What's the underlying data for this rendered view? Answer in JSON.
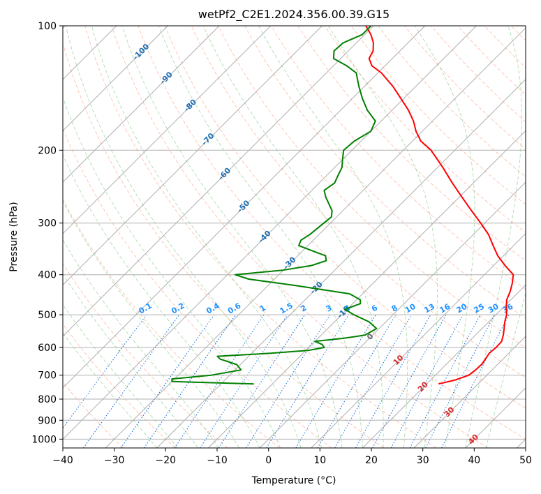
{
  "chart_data": {
    "type": "line",
    "title": "wetPf2_C2E1.2024.356.00.39.G15",
    "xlabel": "Temperature (°C)",
    "ylabel": "Pressure (hPa)",
    "xlim": [
      -40,
      50
    ],
    "ylim": [
      1050,
      100
    ],
    "y_scale": "log",
    "skew": true,
    "x_ticks": [
      "−40",
      "−30",
      "−20",
      "−10",
      "0",
      "10",
      "20",
      "30",
      "40",
      "50"
    ],
    "x_tick_values": [
      -40,
      -30,
      -20,
      -10,
      0,
      10,
      20,
      30,
      40,
      50
    ],
    "y_ticks": [
      "100",
      "200",
      "300",
      "400",
      "500",
      "600",
      "700",
      "800",
      "900",
      "1000"
    ],
    "y_tick_values": [
      100,
      200,
      300,
      400,
      500,
      600,
      700,
      800,
      900,
      1000
    ],
    "grid": true,
    "isotherm_labels": [
      {
        "text": "-100",
        "t": -100,
        "p": 115
      },
      {
        "text": "-90",
        "t": -90,
        "p": 133
      },
      {
        "text": "-80",
        "t": -80,
        "p": 155
      },
      {
        "text": "-70",
        "t": -70,
        "p": 187
      },
      {
        "text": "-60",
        "t": -60,
        "p": 227
      },
      {
        "text": "-50",
        "t": -50,
        "p": 272
      },
      {
        "text": "-40",
        "t": -40,
        "p": 322
      },
      {
        "text": "-30",
        "t": -30,
        "p": 373
      },
      {
        "text": "-20",
        "t": -20,
        "p": 428
      },
      {
        "text": "-10",
        "t": -10,
        "p": 490
      },
      {
        "text": "0",
        "t": 0,
        "p": 562
      },
      {
        "text": "10",
        "t": 10,
        "p": 640
      },
      {
        "text": "20",
        "t": 20,
        "p": 743
      },
      {
        "text": "30",
        "t": 30,
        "p": 855
      },
      {
        "text": "40",
        "t": 40,
        "p": 995
      }
    ],
    "mixing_ratio_labels": [
      "0.1",
      "0.2",
      "0.4",
      "0.6",
      "1",
      "1.5",
      "2",
      "3",
      "4",
      "6",
      "8",
      "10",
      "13",
      "16",
      "20",
      "25",
      "30",
      "36"
    ],
    "mixing_ratio_values": [
      0.1,
      0.2,
      0.4,
      0.6,
      1,
      1.5,
      2,
      3,
      4,
      6,
      8,
      10,
      13,
      16,
      20,
      25,
      30,
      36
    ],
    "series": [
      {
        "color": "#ff0000",
        "points": [
          {
            "p": 735,
            "t": 22.3
          },
          {
            "p": 720,
            "t": 24.7
          },
          {
            "p": 700,
            "t": 26.5
          },
          {
            "p": 680,
            "t": 26.8
          },
          {
            "p": 660,
            "t": 26.9
          },
          {
            "p": 640,
            "t": 26.6
          },
          {
            "p": 620,
            "t": 26.2
          },
          {
            "p": 600,
            "t": 26.4
          },
          {
            "p": 580,
            "t": 26.3
          },
          {
            "p": 560,
            "t": 25.4
          },
          {
            "p": 540,
            "t": 24.3
          },
          {
            "p": 520,
            "t": 23.1
          },
          {
            "p": 500,
            "t": 22.1
          },
          {
            "p": 480,
            "t": 20.6
          },
          {
            "p": 460,
            "t": 19.2
          },
          {
            "p": 440,
            "t": 18.3
          },
          {
            "p": 420,
            "t": 17.1
          },
          {
            "p": 400,
            "t": 15.6
          },
          {
            "p": 380,
            "t": 12.2
          },
          {
            "p": 360,
            "t": 8.9
          },
          {
            "p": 340,
            "t": 6.0
          },
          {
            "p": 320,
            "t": 3.0
          },
          {
            "p": 300,
            "t": -0.8
          },
          {
            "p": 280,
            "t": -5.0
          },
          {
            "p": 260,
            "t": -9.4
          },
          {
            "p": 240,
            "t": -14.1
          },
          {
            "p": 220,
            "t": -19.0
          },
          {
            "p": 200,
            "t": -24.6
          },
          {
            "p": 190,
            "t": -28.4
          },
          {
            "p": 180,
            "t": -31.2
          },
          {
            "p": 170,
            "t": -33.7
          },
          {
            "p": 160,
            "t": -36.8
          },
          {
            "p": 150,
            "t": -40.5
          },
          {
            "p": 140,
            "t": -44.5
          },
          {
            "p": 130,
            "t": -49.3
          },
          {
            "p": 125,
            "t": -52.5
          },
          {
            "p": 120,
            "t": -54.5
          },
          {
            "p": 115,
            "t": -55.2
          },
          {
            "p": 110,
            "t": -56.7
          },
          {
            "p": 105,
            "t": -58.8
          },
          {
            "p": 100,
            "t": -61.5
          }
        ]
      },
      {
        "color": "#008000",
        "points": [
          {
            "p": 735,
            "t": -13.6
          },
          {
            "p": 730,
            "t": -22.0
          },
          {
            "p": 725,
            "t": -30.0
          },
          {
            "p": 715,
            "t": -30.5
          },
          {
            "p": 700,
            "t": -23.6
          },
          {
            "p": 680,
            "t": -18.8
          },
          {
            "p": 660,
            "t": -20.7
          },
          {
            "p": 640,
            "t": -25.0
          },
          {
            "p": 630,
            "t": -26.1
          },
          {
            "p": 620,
            "t": -16.5
          },
          {
            "p": 610,
            "t": -9.6
          },
          {
            "p": 600,
            "t": -7.0
          },
          {
            "p": 590,
            "t": -8.0
          },
          {
            "p": 580,
            "t": -10.0
          },
          {
            "p": 570,
            "t": -5.0
          },
          {
            "p": 560,
            "t": -1.5
          },
          {
            "p": 540,
            "t": -0.5
          },
          {
            "p": 520,
            "t": -3.3
          },
          {
            "p": 500,
            "t": -7.6
          },
          {
            "p": 485,
            "t": -10.4
          },
          {
            "p": 470,
            "t": -8.5
          },
          {
            "p": 460,
            "t": -9.3
          },
          {
            "p": 445,
            "t": -12.5
          },
          {
            "p": 425,
            "t": -24.6
          },
          {
            "p": 410,
            "t": -35.0
          },
          {
            "p": 400,
            "t": -38.5
          },
          {
            "p": 390,
            "t": -30.1
          },
          {
            "p": 380,
            "t": -25.4
          },
          {
            "p": 370,
            "t": -23.5
          },
          {
            "p": 360,
            "t": -24.6
          },
          {
            "p": 350,
            "t": -28.2
          },
          {
            "p": 340,
            "t": -31.8
          },
          {
            "p": 330,
            "t": -32.4
          },
          {
            "p": 320,
            "t": -31.8
          },
          {
            "p": 300,
            "t": -31.3
          },
          {
            "p": 290,
            "t": -31.0
          },
          {
            "p": 280,
            "t": -32.1
          },
          {
            "p": 260,
            "t": -35.9
          },
          {
            "p": 250,
            "t": -37.6
          },
          {
            "p": 240,
            "t": -37.0
          },
          {
            "p": 230,
            "t": -37.8
          },
          {
            "p": 220,
            "t": -38.6
          },
          {
            "p": 210,
            "t": -40.1
          },
          {
            "p": 200,
            "t": -41.6
          },
          {
            "p": 190,
            "t": -41.3
          },
          {
            "p": 180,
            "t": -40.0
          },
          {
            "p": 170,
            "t": -41.1
          },
          {
            "p": 160,
            "t": -44.8
          },
          {
            "p": 150,
            "t": -48.0
          },
          {
            "p": 140,
            "t": -51.1
          },
          {
            "p": 130,
            "t": -54.2
          },
          {
            "p": 125,
            "t": -57.4
          },
          {
            "p": 120,
            "t": -61.4
          },
          {
            "p": 115,
            "t": -62.8
          },
          {
            "p": 110,
            "t": -62.6
          },
          {
            "p": 105,
            "t": -60.5
          },
          {
            "p": 100,
            "t": -60.5
          }
        ]
      }
    ]
  }
}
